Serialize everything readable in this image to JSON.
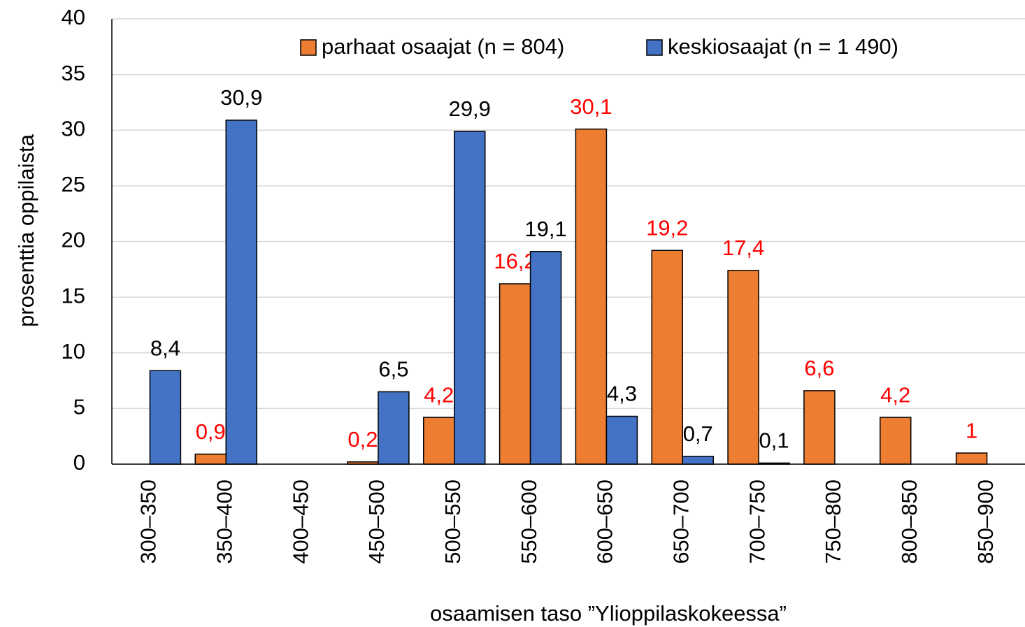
{
  "chart_data": {
    "type": "bar",
    "ylabel": "prosenttia oppilaista",
    "xlabel": "osaamisen taso ”Ylioppilaskokeessa”",
    "categories": [
      "300–350",
      "350–400",
      "400–450",
      "450–500",
      "500–550",
      "550–600",
      "600–650",
      "650–700",
      "700–750",
      "750–800",
      "800–850",
      "850–900"
    ],
    "series": [
      {
        "name": "parhaat osaajat (n = 804)",
        "color": "#ed7d31",
        "label_color": "#ff0000",
        "values": [
          null,
          0.9,
          null,
          0.2,
          4.2,
          16.2,
          30.1,
          19.2,
          17.4,
          6.6,
          4.2,
          1
        ],
        "value_labels": [
          null,
          "0,9",
          null,
          "0,2",
          "4,2",
          "16,2",
          "30,1",
          "19,2",
          "17,4",
          "6,6",
          "4,2",
          "1"
        ]
      },
      {
        "name": "keskiosaajat (n = 1 490)",
        "color": "#4472c4",
        "label_color": "#000000",
        "values": [
          8.4,
          30.9,
          null,
          6.5,
          29.9,
          19.1,
          4.3,
          0.7,
          0.1,
          null,
          null,
          null
        ],
        "value_labels": [
          "8,4",
          "30,9",
          null,
          "6,5",
          "29,9",
          "19,1",
          "4,3",
          "0,7",
          "0,1",
          null,
          null,
          null
        ]
      }
    ],
    "ylim": [
      0,
      40
    ],
    "yticks": [
      0,
      5,
      10,
      15,
      20,
      25,
      30,
      35,
      40
    ],
    "grid": true,
    "legend": "top"
  }
}
